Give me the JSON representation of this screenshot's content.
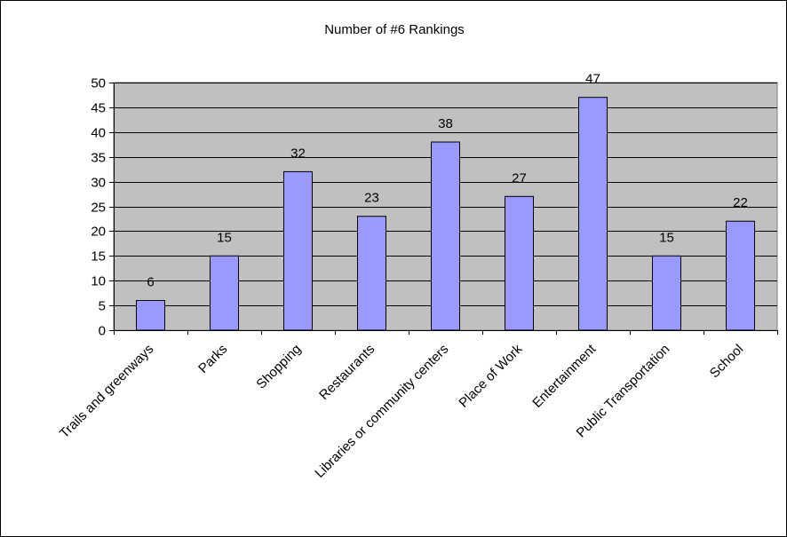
{
  "chart_data": {
    "type": "bar",
    "title": "Number of #6 Rankings",
    "xlabel": "",
    "ylabel": "",
    "categories": [
      "Trails and greenways",
      "Parks",
      "Shopping",
      "Restaurants",
      "Libraries or community centers",
      "Place of Work",
      "Entertainment",
      "Public Transportation",
      "School"
    ],
    "values": [
      6,
      15,
      32,
      23,
      38,
      27,
      47,
      15,
      22
    ],
    "ylim": [
      0,
      50
    ],
    "yticks": [
      0,
      5,
      10,
      15,
      20,
      25,
      30,
      35,
      40,
      45,
      50
    ],
    "grid": true,
    "legend": "none",
    "data_labels": true,
    "colors": {
      "bar_fill": "#9999ff",
      "bar_stroke": "#000000",
      "plot_background": "#c0c0c0",
      "gridline": "#000000"
    }
  }
}
